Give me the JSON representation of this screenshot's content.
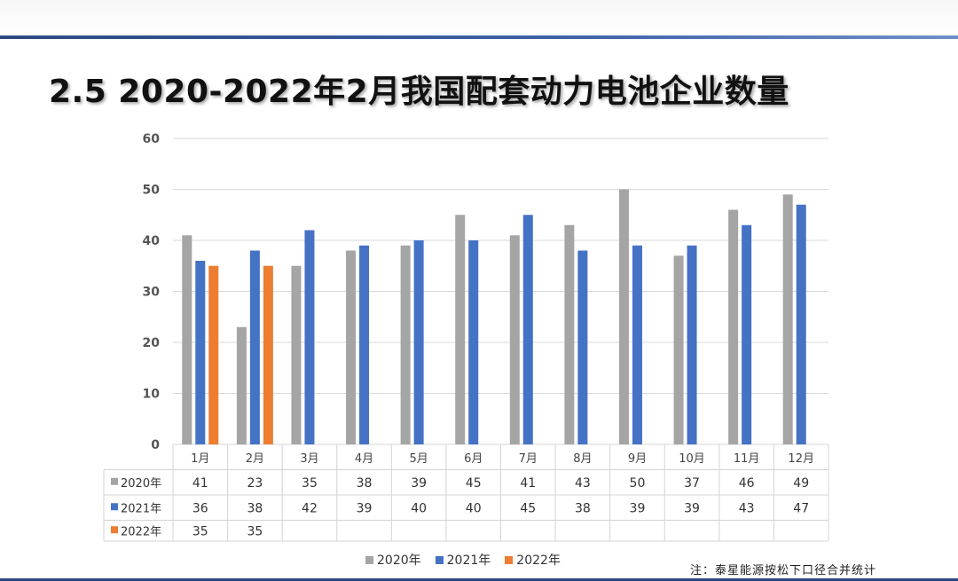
{
  "slide": {
    "title": "2.5 2020-2022年2月我国配套动力电池企业数量",
    "note": "注：泰星能源按松下口径合并统计"
  },
  "chart_data": {
    "type": "bar",
    "categories": [
      "1月",
      "2月",
      "3月",
      "4月",
      "5月",
      "6月",
      "7月",
      "8月",
      "9月",
      "10月",
      "11月",
      "12月"
    ],
    "series": [
      {
        "name": "2020年",
        "color": "#a5a5a5",
        "values": [
          41,
          23,
          35,
          38,
          39,
          45,
          41,
          43,
          50,
          37,
          46,
          49
        ]
      },
      {
        "name": "2021年",
        "color": "#4472c4",
        "values": [
          36,
          38,
          42,
          39,
          40,
          40,
          45,
          38,
          39,
          39,
          43,
          47
        ]
      },
      {
        "name": "2022年",
        "color": "#ed7d31",
        "values": [
          35,
          35,
          null,
          null,
          null,
          null,
          null,
          null,
          null,
          null,
          null,
          null
        ]
      }
    ],
    "ylim": [
      0,
      60
    ],
    "yticks": [
      0,
      10,
      20,
      30,
      40,
      50,
      60
    ],
    "grid": true,
    "data_table": true,
    "legend_position": "bottom"
  }
}
